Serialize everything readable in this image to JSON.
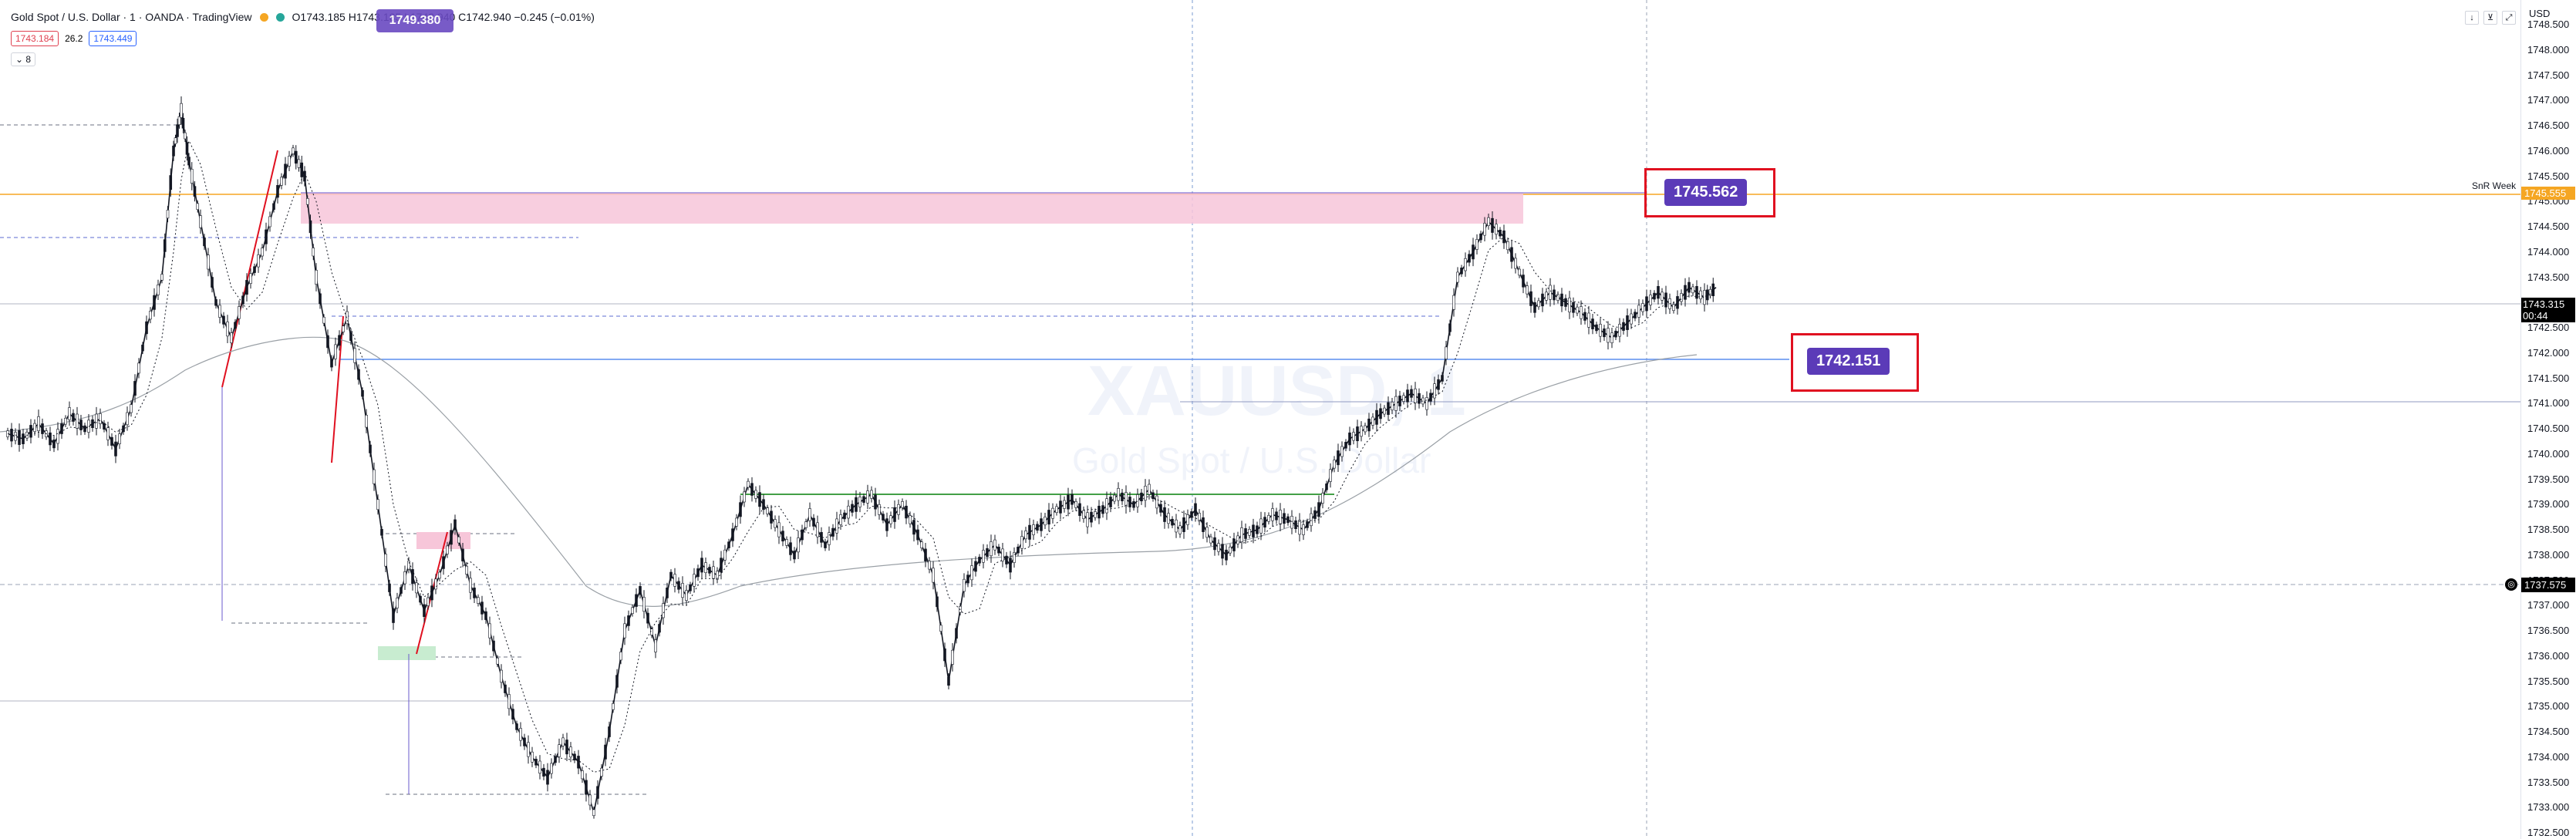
{
  "header": {
    "symbol_title": "Gold Spot / U.S. Dollar · 1 · OANDA · TradingView",
    "ohlc": "O1743.185 H1743.185 L1742.940 C1742.940 −0.245 (−0.01%)",
    "sell_price": "1743.184",
    "spread": "26.2",
    "buy_price": "1743.449",
    "indicator_toggle": "8",
    "overlay_badge": "1749.380"
  },
  "labels": {
    "upper_level": "1745.562",
    "lower_level": "1742.151",
    "snr_week": "SnR Week",
    "currency": "USD",
    "watermark_symbol": "XAUUSD, 1",
    "watermark_name": "Gold Spot / U.S. Dollar"
  },
  "axis": {
    "current_price": "1743.315",
    "countdown": "00:44",
    "snr_price": "1745.555",
    "cursor_price": "1737.575"
  },
  "icons": [
    "down-arrow-icon",
    "collapse-icon",
    "fullscreen-icon",
    "target-icon"
  ],
  "colors": {
    "accent": "#5b3bb8",
    "red_box": "#e01020",
    "pink_zone": "#f7c6d9",
    "snr_line": "#f5a623",
    "green_line": "#43a047",
    "blue_line": "#5b8def"
  },
  "chart_data": {
    "type": "candlestick",
    "yaxis_ticks": [
      "1748.500",
      "1748.000",
      "1747.500",
      "1747.000",
      "1746.500",
      "1746.000",
      "1745.500",
      "1745.000",
      "1744.500",
      "1744.000",
      "1743.500",
      "1743.000",
      "1742.500",
      "1742.000",
      "1741.500",
      "1741.000",
      "1740.500",
      "1740.000",
      "1739.500",
      "1739.000",
      "1738.500",
      "1738.000",
      "1737.500",
      "1737.000",
      "1736.500",
      "1736.000",
      "1735.500",
      "1735.000",
      "1734.500",
      "1734.000",
      "1733.500",
      "1733.000",
      "1732.500"
    ],
    "ylim": [
      1732.5,
      1748.5
    ],
    "price_path": [
      [
        0,
        1740.4
      ],
      [
        20,
        1740.3
      ],
      [
        40,
        1740.6
      ],
      [
        60,
        1740.2
      ],
      [
        80,
        1740.8
      ],
      [
        100,
        1740.5
      ],
      [
        120,
        1740.7
      ],
      [
        140,
        1740.1
      ],
      [
        160,
        1740.9
      ],
      [
        180,
        1742.5
      ],
      [
        200,
        1743.5
      ],
      [
        215,
        1746.0
      ],
      [
        225,
        1746.8
      ],
      [
        235,
        1745.8
      ],
      [
        250,
        1744.6
      ],
      [
        270,
        1743.0
      ],
      [
        290,
        1742.3
      ],
      [
        310,
        1743.3
      ],
      [
        330,
        1744.0
      ],
      [
        350,
        1745.2
      ],
      [
        370,
        1746.0
      ],
      [
        385,
        1745.5
      ],
      [
        400,
        1743.5
      ],
      [
        420,
        1741.8
      ],
      [
        440,
        1742.7
      ],
      [
        460,
        1741.2
      ],
      [
        480,
        1739.0
      ],
      [
        500,
        1736.8
      ],
      [
        520,
        1737.8
      ],
      [
        540,
        1736.9
      ],
      [
        560,
        1737.6
      ],
      [
        580,
        1738.6
      ],
      [
        600,
        1737.4
      ],
      [
        620,
        1736.8
      ],
      [
        640,
        1735.6
      ],
      [
        660,
        1734.6
      ],
      [
        680,
        1734.0
      ],
      [
        700,
        1733.6
      ],
      [
        720,
        1734.3
      ],
      [
        740,
        1733.9
      ],
      [
        760,
        1732.9
      ],
      [
        780,
        1734.5
      ],
      [
        800,
        1736.5
      ],
      [
        820,
        1737.3
      ],
      [
        840,
        1736.2
      ],
      [
        860,
        1737.6
      ],
      [
        880,
        1737.2
      ],
      [
        900,
        1737.8
      ],
      [
        920,
        1737.6
      ],
      [
        940,
        1738.4
      ],
      [
        960,
        1739.4
      ],
      [
        980,
        1739.0
      ],
      [
        1000,
        1738.5
      ],
      [
        1020,
        1738.0
      ],
      [
        1040,
        1738.8
      ],
      [
        1060,
        1738.2
      ],
      [
        1080,
        1738.7
      ],
      [
        1100,
        1739.0
      ],
      [
        1120,
        1739.2
      ],
      [
        1140,
        1738.6
      ],
      [
        1160,
        1739.0
      ],
      [
        1180,
        1738.4
      ],
      [
        1200,
        1737.6
      ],
      [
        1220,
        1735.5
      ],
      [
        1240,
        1737.4
      ],
      [
        1260,
        1737.9
      ],
      [
        1280,
        1738.2
      ],
      [
        1300,
        1737.8
      ],
      [
        1320,
        1738.4
      ],
      [
        1340,
        1738.6
      ],
      [
        1360,
        1738.9
      ],
      [
        1380,
        1739.1
      ],
      [
        1400,
        1738.7
      ],
      [
        1420,
        1738.9
      ],
      [
        1440,
        1739.2
      ],
      [
        1460,
        1739.0
      ],
      [
        1480,
        1739.3
      ],
      [
        1500,
        1738.8
      ],
      [
        1520,
        1738.5
      ],
      [
        1540,
        1738.9
      ],
      [
        1560,
        1738.3
      ],
      [
        1580,
        1738.0
      ],
      [
        1600,
        1738.4
      ],
      [
        1620,
        1738.5
      ],
      [
        1640,
        1738.8
      ],
      [
        1660,
        1738.7
      ],
      [
        1680,
        1738.5
      ],
      [
        1700,
        1738.9
      ],
      [
        1720,
        1739.8
      ],
      [
        1740,
        1740.3
      ],
      [
        1760,
        1740.5
      ],
      [
        1780,
        1740.8
      ],
      [
        1800,
        1741.0
      ],
      [
        1820,
        1741.2
      ],
      [
        1840,
        1741.0
      ],
      [
        1860,
        1741.5
      ],
      [
        1880,
        1743.5
      ],
      [
        1900,
        1744.0
      ],
      [
        1920,
        1744.6
      ],
      [
        1940,
        1744.3
      ],
      [
        1960,
        1743.6
      ],
      [
        1980,
        1742.9
      ],
      [
        2000,
        1743.2
      ],
      [
        2020,
        1743.0
      ],
      [
        2040,
        1742.8
      ],
      [
        2060,
        1742.5
      ],
      [
        2080,
        1742.3
      ],
      [
        2100,
        1742.6
      ],
      [
        2120,
        1742.9
      ],
      [
        2140,
        1743.2
      ],
      [
        2160,
        1742.9
      ],
      [
        2180,
        1743.3
      ],
      [
        2200,
        1743.1
      ],
      [
        2215,
        1743.3
      ]
    ]
  }
}
